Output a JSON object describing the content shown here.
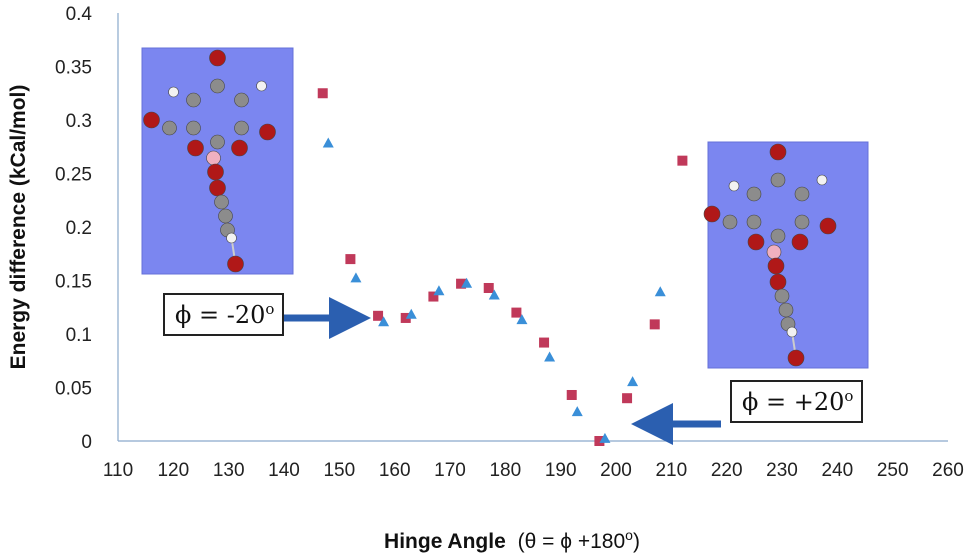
{
  "chart_data": {
    "type": "scatter",
    "xlabel_bold": "Hinge Angle",
    "xlabel_rest": "(θ = ϕ +180",
    "xlabel_sup": "o",
    "xlabel_close": ")",
    "ylabel": "Energy difference (kCal/mol)",
    "xlim": [
      110,
      260
    ],
    "ylim": [
      0,
      0.4
    ],
    "xticks": [
      "110",
      "120",
      "130",
      "140",
      "150",
      "160",
      "170",
      "180",
      "190",
      "200",
      "210",
      "220",
      "230",
      "240",
      "250",
      "260"
    ],
    "yticks": [
      "0",
      "0.05",
      "0.1",
      "0.15",
      "0.2",
      "0.25",
      "0.3",
      "0.35",
      "0.4"
    ],
    "series": [
      {
        "marker": "square",
        "color": "#c0395a",
        "points": [
          [
            147,
            0.325
          ],
          [
            152,
            0.17
          ],
          [
            157,
            0.117
          ],
          [
            162,
            0.115
          ],
          [
            167,
            0.135
          ],
          [
            172,
            0.147
          ],
          [
            177,
            0.143
          ],
          [
            182,
            0.12
          ],
          [
            187,
            0.092
          ],
          [
            192,
            0.043
          ],
          [
            197,
            0.0
          ],
          [
            202,
            0.04
          ],
          [
            207,
            0.109
          ],
          [
            212,
            0.262
          ]
        ]
      },
      {
        "marker": "triangle",
        "color": "#3a8fd8",
        "points": [
          [
            148,
            0.278
          ],
          [
            153,
            0.152
          ],
          [
            158,
            0.111
          ],
          [
            163,
            0.118
          ],
          [
            168,
            0.14
          ],
          [
            173,
            0.147
          ],
          [
            178,
            0.136
          ],
          [
            183,
            0.113
          ],
          [
            188,
            0.078
          ],
          [
            193,
            0.027
          ],
          [
            198,
            0.002
          ],
          [
            203,
            0.055
          ],
          [
            208,
            0.139
          ]
        ]
      }
    ],
    "annotations": {
      "left": {
        "prefix": "ϕ = -20",
        "sup": "o"
      },
      "right": {
        "prefix": "ϕ = +20",
        "sup": "o"
      }
    },
    "inset_color": "#7b86f0",
    "arrow_color": "#2b5fb0"
  }
}
